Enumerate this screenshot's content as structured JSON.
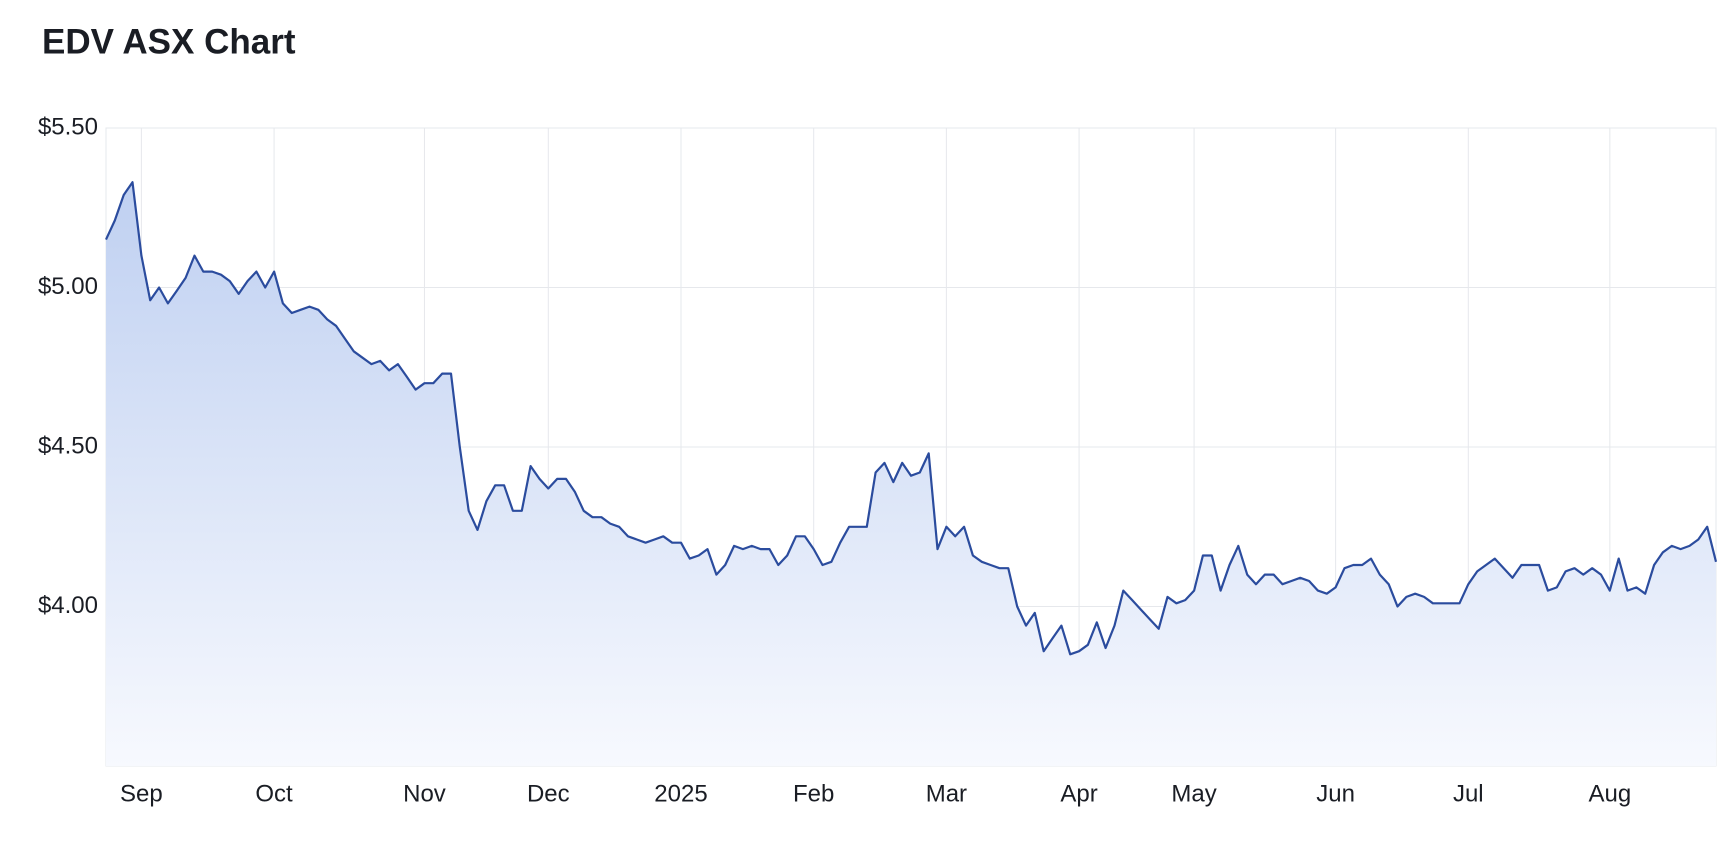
{
  "chart_data": {
    "type": "area",
    "title": "EDV ASX Chart",
    "categories": [
      null,
      null,
      null,
      null,
      "Sep",
      null,
      null,
      null,
      null,
      null,
      null,
      null,
      null,
      null,
      null,
      null,
      null,
      null,
      null,
      "Oct",
      null,
      null,
      null,
      null,
      null,
      null,
      null,
      null,
      null,
      null,
      null,
      null,
      null,
      null,
      null,
      null,
      "Nov",
      null,
      null,
      null,
      null,
      null,
      null,
      null,
      null,
      null,
      null,
      null,
      null,
      null,
      "Dec",
      null,
      null,
      null,
      null,
      null,
      null,
      null,
      null,
      null,
      null,
      null,
      null,
      null,
      null,
      "2025",
      null,
      null,
      null,
      null,
      null,
      null,
      null,
      null,
      null,
      null,
      null,
      null,
      null,
      null,
      "Feb",
      null,
      null,
      null,
      null,
      null,
      null,
      null,
      null,
      null,
      null,
      null,
      null,
      null,
      null,
      "Mar",
      null,
      null,
      null,
      null,
      null,
      null,
      null,
      null,
      null,
      null,
      null,
      null,
      null,
      null,
      "Apr",
      null,
      null,
      null,
      null,
      null,
      null,
      null,
      null,
      null,
      null,
      null,
      null,
      "May",
      null,
      null,
      null,
      null,
      null,
      null,
      null,
      null,
      null,
      null,
      null,
      null,
      null,
      null,
      null,
      "Jun",
      null,
      null,
      null,
      null,
      null,
      null,
      null,
      null,
      null,
      null,
      null,
      null,
      null,
      null,
      "Jul",
      null,
      null,
      null,
      null,
      null,
      null,
      null,
      null,
      null,
      null,
      null,
      null,
      null,
      null,
      null,
      "Aug",
      null,
      null,
      null,
      null,
      null,
      null,
      null,
      null,
      null,
      null,
      null,
      null
    ],
    "values": [
      5.15,
      5.21,
      5.29,
      5.33,
      5.1,
      4.96,
      5.0,
      4.95,
      4.99,
      5.03,
      5.1,
      5.05,
      5.05,
      5.04,
      5.02,
      4.98,
      5.02,
      5.05,
      5.0,
      5.05,
      4.95,
      4.92,
      4.93,
      4.94,
      4.93,
      4.9,
      4.88,
      4.84,
      4.8,
      4.78,
      4.76,
      4.77,
      4.74,
      4.76,
      4.72,
      4.68,
      4.7,
      4.7,
      4.73,
      4.73,
      4.5,
      4.3,
      4.24,
      4.33,
      4.38,
      4.38,
      4.3,
      4.3,
      4.44,
      4.4,
      4.37,
      4.4,
      4.4,
      4.36,
      4.3,
      4.28,
      4.28,
      4.26,
      4.25,
      4.22,
      4.21,
      4.2,
      4.21,
      4.22,
      4.2,
      4.2,
      4.15,
      4.16,
      4.18,
      4.1,
      4.13,
      4.19,
      4.18,
      4.19,
      4.18,
      4.18,
      4.13,
      4.16,
      4.22,
      4.22,
      4.18,
      4.13,
      4.14,
      4.2,
      4.25,
      4.25,
      4.25,
      4.42,
      4.45,
      4.39,
      4.45,
      4.41,
      4.42,
      4.48,
      4.18,
      4.25,
      4.22,
      4.25,
      4.16,
      4.14,
      4.13,
      4.12,
      4.12,
      4.0,
      3.94,
      3.98,
      3.86,
      3.9,
      3.94,
      3.85,
      3.86,
      3.88,
      3.95,
      3.87,
      3.94,
      4.05,
      4.02,
      3.99,
      3.96,
      3.93,
      4.03,
      4.01,
      4.02,
      4.05,
      4.16,
      4.16,
      4.05,
      4.13,
      4.19,
      4.1,
      4.07,
      4.1,
      4.1,
      4.07,
      4.08,
      4.09,
      4.08,
      4.05,
      4.04,
      4.06,
      4.12,
      4.13,
      4.13,
      4.15,
      4.1,
      4.07,
      4.0,
      4.03,
      4.04,
      4.03,
      4.01,
      4.01,
      4.01,
      4.01,
      4.07,
      4.11,
      4.13,
      4.15,
      4.12,
      4.09,
      4.13,
      4.13,
      4.13,
      4.05,
      4.06,
      4.11,
      4.12,
      4.1,
      4.12,
      4.1,
      4.05,
      4.15,
      4.05,
      4.06,
      4.04,
      4.13,
      4.17,
      4.19,
      4.18,
      4.19,
      4.21,
      4.25,
      4.14
    ],
    "color": "#2b4c9e",
    "ylim": [
      3.5,
      5.5
    ],
    "yticks": [
      {
        "value": 4.0,
        "label": "$4.00"
      },
      {
        "value": 4.5,
        "label": "$4.50"
      },
      {
        "value": 5.0,
        "label": "$5.00"
      },
      {
        "value": 5.5,
        "label": "$5.50"
      }
    ],
    "grid": true
  }
}
